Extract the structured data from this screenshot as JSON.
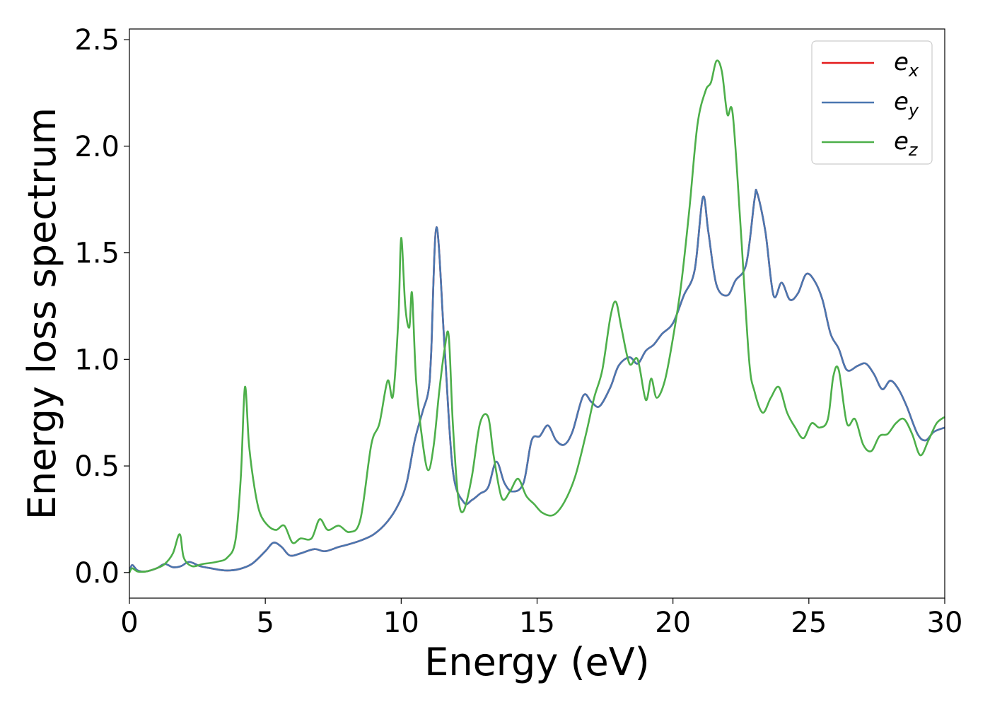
{
  "chart_data": {
    "type": "line",
    "title": "",
    "xlabel": "Energy (eV)",
    "ylabel": "Energy loss spectrum",
    "xlim": [
      0,
      30
    ],
    "ylim": [
      -0.12,
      2.55
    ],
    "xticks": [
      0,
      5,
      10,
      15,
      20,
      25,
      30
    ],
    "yticks": [
      0.0,
      0.5,
      1.0,
      1.5,
      2.0,
      2.5
    ],
    "xtick_labels": [
      "0",
      "5",
      "10",
      "15",
      "20",
      "25",
      "30"
    ],
    "ytick_labels": [
      "0.0",
      "0.5",
      "1.0",
      "1.5",
      "2.0",
      "2.5"
    ],
    "grid": false,
    "legend_position": "top-right",
    "series": [
      {
        "name": "e_x",
        "label_base": "e",
        "label_sub": "x",
        "color": "#e41a1c",
        "x": [
          0,
          0.1,
          0.3,
          0.6,
          1.0,
          1.3,
          1.6,
          1.9,
          2.2,
          2.6,
          3.0,
          3.5,
          4.0,
          4.5,
          5.0,
          5.3,
          5.6,
          5.9,
          6.3,
          6.8,
          7.2,
          7.7,
          8.0,
          8.5,
          9.0,
          9.5,
          9.9,
          10.2,
          10.5,
          10.8,
          11.0,
          11.1,
          11.3,
          11.6,
          11.9,
          12.3,
          12.6,
          12.9,
          13.2,
          13.5,
          13.8,
          14.1,
          14.5,
          14.8,
          15.1,
          15.4,
          15.7,
          16.0,
          16.3,
          16.7,
          17.0,
          17.3,
          17.7,
          18.0,
          18.4,
          18.7,
          19.0,
          19.3,
          19.6,
          20.0,
          20.4,
          20.8,
          21.1,
          21.3,
          21.6,
          22.0,
          22.3,
          22.7,
          23.0,
          23.1,
          23.4,
          23.7,
          24.0,
          24.3,
          24.6,
          24.9,
          25.2,
          25.5,
          25.8,
          26.1,
          26.4,
          26.8,
          27.1,
          27.4,
          27.7,
          28.0,
          28.3,
          28.6,
          29.0,
          29.3,
          29.6,
          30.0
        ],
        "y": [
          0.0,
          0.035,
          0.01,
          0.005,
          0.02,
          0.04,
          0.025,
          0.03,
          0.05,
          0.03,
          0.02,
          0.01,
          0.015,
          0.04,
          0.1,
          0.14,
          0.12,
          0.08,
          0.09,
          0.11,
          0.1,
          0.12,
          0.13,
          0.15,
          0.18,
          0.24,
          0.32,
          0.42,
          0.62,
          0.76,
          0.85,
          1.02,
          1.62,
          1.05,
          0.48,
          0.33,
          0.34,
          0.37,
          0.4,
          0.52,
          0.42,
          0.38,
          0.42,
          0.62,
          0.64,
          0.69,
          0.62,
          0.6,
          0.66,
          0.83,
          0.8,
          0.78,
          0.87,
          0.97,
          1.01,
          0.98,
          1.04,
          1.07,
          1.12,
          1.17,
          1.3,
          1.42,
          1.76,
          1.6,
          1.35,
          1.3,
          1.37,
          1.45,
          1.75,
          1.78,
          1.6,
          1.3,
          1.36,
          1.28,
          1.31,
          1.4,
          1.37,
          1.28,
          1.12,
          1.05,
          0.95,
          0.97,
          0.98,
          0.93,
          0.86,
          0.9,
          0.86,
          0.78,
          0.65,
          0.62,
          0.66,
          0.68
        ]
      },
      {
        "name": "e_y",
        "label_base": "e",
        "label_sub": "y",
        "color": "#4a77b0",
        "x": [
          0,
          0.1,
          0.3,
          0.6,
          1.0,
          1.3,
          1.6,
          1.9,
          2.2,
          2.6,
          3.0,
          3.5,
          4.0,
          4.5,
          5.0,
          5.3,
          5.6,
          5.9,
          6.3,
          6.8,
          7.2,
          7.7,
          8.0,
          8.5,
          9.0,
          9.5,
          9.9,
          10.2,
          10.5,
          10.8,
          11.0,
          11.1,
          11.3,
          11.6,
          11.9,
          12.3,
          12.6,
          12.9,
          13.2,
          13.5,
          13.8,
          14.1,
          14.5,
          14.8,
          15.1,
          15.4,
          15.7,
          16.0,
          16.3,
          16.7,
          17.0,
          17.3,
          17.7,
          18.0,
          18.4,
          18.7,
          19.0,
          19.3,
          19.6,
          20.0,
          20.4,
          20.8,
          21.1,
          21.3,
          21.6,
          22.0,
          22.3,
          22.7,
          23.0,
          23.1,
          23.4,
          23.7,
          24.0,
          24.3,
          24.6,
          24.9,
          25.2,
          25.5,
          25.8,
          26.1,
          26.4,
          26.8,
          27.1,
          27.4,
          27.7,
          28.0,
          28.3,
          28.6,
          29.0,
          29.3,
          29.6,
          30.0
        ],
        "y": [
          0.0,
          0.035,
          0.01,
          0.005,
          0.02,
          0.04,
          0.025,
          0.03,
          0.05,
          0.03,
          0.02,
          0.01,
          0.015,
          0.04,
          0.1,
          0.14,
          0.12,
          0.08,
          0.09,
          0.11,
          0.1,
          0.12,
          0.13,
          0.15,
          0.18,
          0.24,
          0.32,
          0.42,
          0.62,
          0.76,
          0.85,
          1.02,
          1.62,
          1.05,
          0.48,
          0.33,
          0.34,
          0.37,
          0.4,
          0.52,
          0.42,
          0.38,
          0.42,
          0.62,
          0.64,
          0.69,
          0.62,
          0.6,
          0.66,
          0.83,
          0.8,
          0.78,
          0.87,
          0.97,
          1.01,
          0.98,
          1.04,
          1.07,
          1.12,
          1.17,
          1.3,
          1.42,
          1.76,
          1.6,
          1.35,
          1.3,
          1.37,
          1.45,
          1.75,
          1.78,
          1.6,
          1.3,
          1.36,
          1.28,
          1.31,
          1.4,
          1.37,
          1.28,
          1.12,
          1.05,
          0.95,
          0.97,
          0.98,
          0.93,
          0.86,
          0.9,
          0.86,
          0.78,
          0.65,
          0.62,
          0.66,
          0.68
        ]
      },
      {
        "name": "e_z",
        "label_base": "e",
        "label_sub": "z",
        "color": "#4daf4a",
        "x": [
          0,
          0.1,
          0.3,
          0.6,
          1.0,
          1.3,
          1.6,
          1.85,
          2.0,
          2.3,
          2.7,
          3.2,
          3.6,
          3.9,
          4.1,
          4.25,
          4.4,
          4.6,
          4.8,
          5.1,
          5.4,
          5.7,
          6.0,
          6.3,
          6.7,
          7.0,
          7.3,
          7.7,
          8.1,
          8.5,
          8.9,
          9.2,
          9.5,
          9.7,
          9.9,
          10.0,
          10.15,
          10.3,
          10.4,
          10.55,
          10.8,
          11.0,
          11.2,
          11.4,
          11.6,
          11.75,
          11.9,
          12.1,
          12.3,
          12.6,
          12.9,
          13.2,
          13.4,
          13.7,
          14.0,
          14.3,
          14.6,
          14.9,
          15.2,
          15.6,
          16.0,
          16.4,
          16.8,
          17.1,
          17.4,
          17.7,
          17.9,
          18.1,
          18.4,
          18.7,
          19.0,
          19.2,
          19.4,
          19.7,
          20.0,
          20.3,
          20.6,
          20.9,
          21.2,
          21.4,
          21.6,
          21.8,
          22.0,
          22.2,
          22.5,
          22.8,
          23.0,
          23.3,
          23.6,
          23.9,
          24.2,
          24.5,
          24.8,
          25.1,
          25.4,
          25.7,
          25.9,
          26.1,
          26.4,
          26.7,
          27.0,
          27.3,
          27.6,
          27.9,
          28.2,
          28.5,
          28.8,
          29.1,
          29.4,
          29.7,
          30.0
        ],
        "y": [
          0.0,
          0.02,
          0.005,
          0.005,
          0.02,
          0.04,
          0.09,
          0.18,
          0.07,
          0.03,
          0.04,
          0.05,
          0.07,
          0.15,
          0.45,
          0.87,
          0.6,
          0.4,
          0.28,
          0.22,
          0.2,
          0.22,
          0.14,
          0.16,
          0.16,
          0.25,
          0.2,
          0.22,
          0.19,
          0.25,
          0.6,
          0.7,
          0.9,
          0.83,
          1.2,
          1.57,
          1.25,
          1.15,
          1.31,
          0.9,
          0.6,
          0.48,
          0.6,
          0.85,
          1.05,
          1.11,
          0.7,
          0.35,
          0.29,
          0.45,
          0.7,
          0.73,
          0.55,
          0.35,
          0.38,
          0.44,
          0.36,
          0.32,
          0.28,
          0.27,
          0.33,
          0.45,
          0.65,
          0.82,
          0.95,
          1.2,
          1.27,
          1.15,
          0.98,
          1.0,
          0.81,
          0.91,
          0.82,
          0.9,
          1.1,
          1.35,
          1.7,
          2.1,
          2.26,
          2.3,
          2.4,
          2.35,
          2.15,
          2.15,
          1.6,
          1.0,
          0.85,
          0.75,
          0.82,
          0.87,
          0.75,
          0.68,
          0.63,
          0.7,
          0.68,
          0.72,
          0.92,
          0.95,
          0.7,
          0.72,
          0.6,
          0.57,
          0.64,
          0.65,
          0.7,
          0.72,
          0.65,
          0.55,
          0.62,
          0.7,
          0.73
        ]
      }
    ]
  }
}
